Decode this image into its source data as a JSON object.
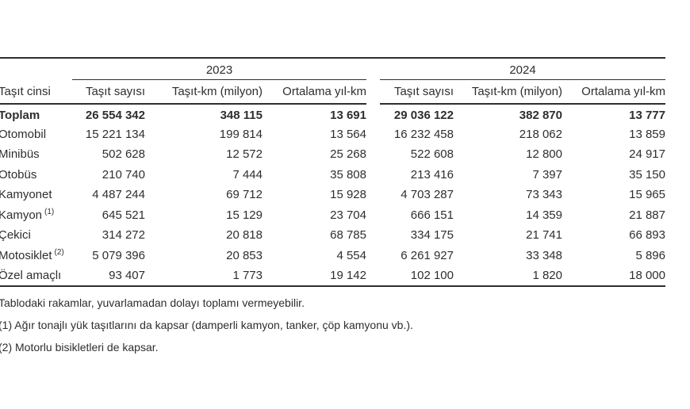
{
  "table": {
    "col_group_label": "Taşıt cinsi",
    "years": [
      "2023",
      "2024"
    ],
    "columns": [
      "Taşıt sayısı",
      "Taşıt-km (milyon)",
      "Ortalama yıl-km"
    ],
    "rows": [
      {
        "label": "Toplam",
        "sup": "",
        "values": [
          "26 554 342",
          "348 115",
          "13 691",
          "29 036 122",
          "382 870",
          "13 777"
        ]
      },
      {
        "label": "Otomobil",
        "sup": "",
        "values": [
          "15 221 134",
          "199 814",
          "13 564",
          "16 232 458",
          "218 062",
          "13 859"
        ]
      },
      {
        "label": "Minibüs",
        "sup": "",
        "values": [
          "502 628",
          "12 572",
          "25 268",
          "522 608",
          "12 800",
          "24 917"
        ]
      },
      {
        "label": "Otobüs",
        "sup": "",
        "values": [
          "210 740",
          "7 444",
          "35 808",
          "213 416",
          "7 397",
          "35 150"
        ]
      },
      {
        "label": "Kamyonet",
        "sup": "",
        "values": [
          "4 487 244",
          "69 712",
          "15 928",
          "4 703 287",
          "73 343",
          "15 965"
        ]
      },
      {
        "label": "Kamyon",
        "sup": "(1)",
        "values": [
          "645 521",
          "15 129",
          "23 704",
          "666 151",
          "14 359",
          "21 887"
        ]
      },
      {
        "label": "Çekici",
        "sup": "",
        "values": [
          "314 272",
          "20 818",
          "68 785",
          "334 175",
          "21 741",
          "66 893"
        ]
      },
      {
        "label": "Motosiklet",
        "sup": "(2)",
        "values": [
          "5 079 396",
          "20 853",
          "4 554",
          "6 261 927",
          "33 348",
          "5 896"
        ]
      },
      {
        "label": "Özel amaçlı",
        "sup": "",
        "values": [
          "93 407",
          "1 773",
          "19 142",
          "102 100",
          "1 820",
          "18 000"
        ]
      }
    ]
  },
  "footnotes": [
    "Tablodaki rakamlar, yuvarlamadan dolayı toplamı vermeyebilir.",
    "(1) Ağır tonajlı yük taşıtlarını da kapsar (damperli kamyon, tanker, çöp kamyonu vb.).",
    "(2) Motorlu bisikletleri de kapsar."
  ],
  "colors": {
    "text": "#2e2e2e",
    "rule": "#2f2f2f",
    "background": "#ffffff"
  }
}
